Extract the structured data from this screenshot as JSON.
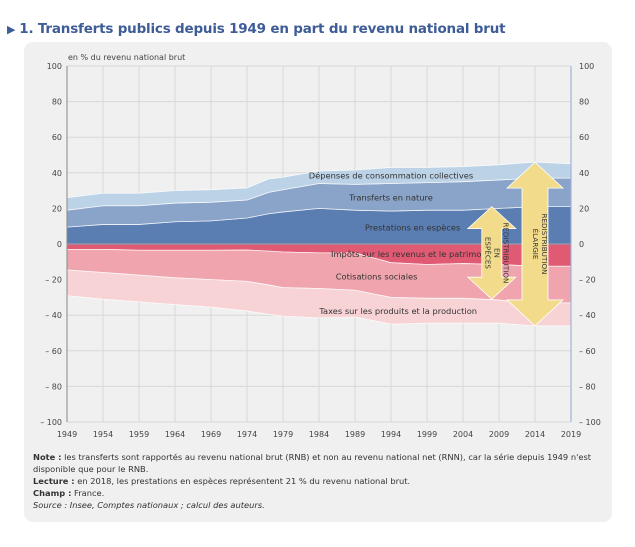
{
  "title": "1. Transferts publics depuis 1949 en part du revenu national brut",
  "notes": {
    "note_label": "Note :",
    "note_text": " les transferts sont rapportés au revenu national brut (RNB) et non au revenu national net (RNN), car la série depuis 1949 n'est disponible que pour le RNB.",
    "lecture_label": "Lecture :",
    "lecture_text": " en 2018, les prestations en espèces représentent 21 % du revenu national brut.",
    "champ_label": "Champ :",
    "champ_text": " France.",
    "source": "Source : Insee, Comptes nationaux ; calcul des auteurs."
  },
  "chart_data": {
    "type": "area",
    "title": "1. Transferts publics depuis 1949 en part du revenu national brut",
    "ylabel": "en % du revenu national brut",
    "xlabel": "",
    "ylim": [
      -100,
      100
    ],
    "xlim": [
      1949,
      2019
    ],
    "grid": true,
    "yticks": [
      100,
      80,
      60,
      40,
      20,
      0,
      -20,
      -40,
      -60,
      -80,
      -100
    ],
    "ytick_labels": [
      "100",
      "80",
      "60",
      "40",
      "20",
      "0",
      "– 20",
      "– 40",
      "– 60",
      "– 80",
      "– 100"
    ],
    "xticks": [
      1949,
      1954,
      1959,
      1964,
      1969,
      1974,
      1979,
      1984,
      1989,
      1994,
      1999,
      2004,
      2009,
      2014,
      2019
    ],
    "x": [
      1949,
      1954,
      1959,
      1964,
      1969,
      1974,
      1977,
      1979,
      1984,
      1989,
      1994,
      1999,
      2004,
      2009,
      2014,
      2019
    ],
    "series": [
      {
        "name": "Prestations en espèces",
        "side": "positive",
        "color": "#5a7db2",
        "values": [
          9.5,
          11,
          11,
          12.5,
          13,
          14.6,
          17,
          18,
          20,
          19,
          18.5,
          19,
          19,
          20,
          21,
          21
        ]
      },
      {
        "name": "Transferts en nature",
        "side": "positive",
        "color": "#8aa3c8",
        "values": [
          9.5,
          10.5,
          10.5,
          10.5,
          10.5,
          10.1,
          12,
          12.5,
          14,
          14.5,
          15.5,
          15.5,
          16,
          16,
          16,
          16
        ]
      },
      {
        "name": "Dépenses de consommation collectives",
        "side": "positive",
        "color": "#bcd2e6",
        "values": [
          7,
          7,
          7,
          7,
          7,
          6.8,
          7.5,
          7,
          7,
          8,
          9,
          8.5,
          8.5,
          8.5,
          9,
          8
        ]
      },
      {
        "name": "Impôts sur les revenus et le patrimoine",
        "side": "negative",
        "color": "#e05a74",
        "values": [
          3,
          3,
          3.5,
          3.5,
          3.5,
          3.4,
          4,
          4.5,
          5,
          5,
          10.5,
          11.5,
          11,
          11.5,
          12.5,
          12.5
        ]
      },
      {
        "name": "Cotisations sociales",
        "side": "negative",
        "color": "#f0a5ae",
        "values": [
          11.6,
          13,
          14,
          15.5,
          16.5,
          17.6,
          19,
          20,
          20,
          21,
          19.5,
          19,
          19.5,
          20,
          21,
          20.5
        ]
      },
      {
        "name": "Taxes sur les produits et la production",
        "side": "negative",
        "color": "#f7d3d6",
        "values": [
          14.4,
          15,
          15,
          15,
          15.5,
          16.6,
          16.5,
          16,
          16.5,
          15,
          15,
          14,
          14,
          13,
          12.5,
          13
        ]
      }
    ],
    "annotations": [
      {
        "text": "REDISTRIBUTION EN ESPÈCES",
        "type": "double-arrow",
        "x": 2008,
        "from": 21,
        "to": -31
      },
      {
        "text": "REDISTRIBUTION ÉLARGIE",
        "type": "double-arrow",
        "x": 2014,
        "from": 46,
        "to": -46
      }
    ],
    "colors": {
      "arrow": "#f2dc8c",
      "zero_line": "#9a9aa8",
      "right_axis": "#9fb3d8",
      "grid": "#d8d8d8"
    }
  }
}
